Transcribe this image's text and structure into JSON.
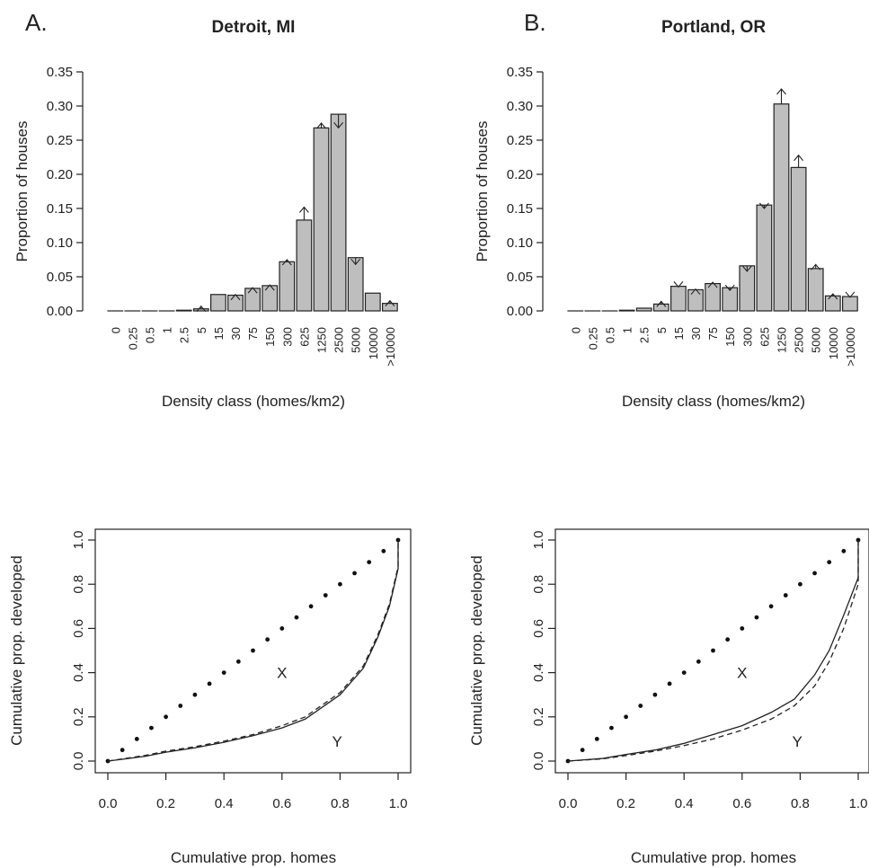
{
  "panels": [
    {
      "letter": "A.",
      "title": "Detroit, MI"
    },
    {
      "letter": "B.",
      "title": "Portland, OR"
    }
  ],
  "chart_data": [
    {
      "type": "bar",
      "panel": "A.",
      "title": "Detroit, MI",
      "xlabel": "Density class (homes/km2)",
      "ylabel": "Proportion of houses",
      "ylim": [
        0,
        0.35
      ],
      "yticks": [
        "0.00",
        "0.05",
        "0.10",
        "0.15",
        "0.20",
        "0.25",
        "0.30",
        "0.35"
      ],
      "categories": [
        "0",
        "0.25",
        "0.5",
        "1",
        "2.5",
        "5",
        "15",
        "30",
        "75",
        "150",
        "300",
        "625",
        "1250",
        "2500",
        "5000",
        "10000",
        ">10000"
      ],
      "values": [
        0.0,
        0.0,
        0.0,
        0.0,
        0.001,
        0.003,
        0.024,
        0.023,
        0.033,
        0.037,
        0.072,
        0.133,
        0.268,
        0.288,
        0.078,
        0.026,
        0.011
      ],
      "arrow_ends": [
        0.0,
        0.0,
        0.0,
        0.0,
        0.001,
        0.007,
        0.024,
        0.024,
        0.034,
        0.038,
        0.075,
        0.152,
        0.275,
        0.268,
        0.068,
        0.026,
        0.015
      ],
      "grid": false
    },
    {
      "type": "bar",
      "panel": "B.",
      "title": "Portland, OR",
      "xlabel": "Density class (homes/km2)",
      "ylabel": "Proportion of houses",
      "ylim": [
        0,
        0.35
      ],
      "yticks": [
        "0.00",
        "0.05",
        "0.10",
        "0.15",
        "0.20",
        "0.25",
        "0.30",
        "0.35"
      ],
      "categories": [
        "0",
        "0.25",
        "0.5",
        "1",
        "2.5",
        "5",
        "15",
        "30",
        "75",
        "150",
        "300",
        "625",
        "1250",
        "2500",
        "5000",
        "10000",
        ">10000"
      ],
      "values": [
        0.0,
        0.0,
        0.0,
        0.001,
        0.004,
        0.01,
        0.036,
        0.031,
        0.04,
        0.034,
        0.066,
        0.155,
        0.303,
        0.21,
        0.062,
        0.022,
        0.021
      ],
      "arrow_ends": [
        0.0,
        0.0,
        0.0,
        0.001,
        0.004,
        0.014,
        0.035,
        0.032,
        0.042,
        0.03,
        0.058,
        0.15,
        0.325,
        0.228,
        0.068,
        0.025,
        0.02
      ],
      "grid": false
    },
    {
      "type": "line",
      "panel": "A.",
      "xlabel": "Cumulative prop. homes",
      "ylabel": "Cumulative prop. developed",
      "xlim": [
        0,
        1
      ],
      "ylim": [
        0,
        1
      ],
      "xticks": [
        "0.0",
        "0.2",
        "0.4",
        "0.6",
        "0.8",
        "1.0"
      ],
      "yticks": [
        "0.0",
        "0.2",
        "0.4",
        "0.6",
        "0.8",
        "1.0"
      ],
      "annotations": [
        {
          "text": "X",
          "x": 0.6,
          "y": 0.4
        },
        {
          "text": "Y",
          "x": 0.79,
          "y": 0.09
        }
      ],
      "series": [
        {
          "style": "dotted",
          "x": [
            0,
            0.05,
            0.1,
            0.15,
            0.2,
            0.25,
            0.3,
            0.35,
            0.4,
            0.45,
            0.5,
            0.55,
            0.6,
            0.65,
            0.7,
            0.75,
            0.8,
            0.85,
            0.9,
            0.95,
            1.0
          ],
          "y": [
            0,
            0.05,
            0.1,
            0.15,
            0.2,
            0.25,
            0.3,
            0.35,
            0.4,
            0.45,
            0.5,
            0.55,
            0.6,
            0.65,
            0.7,
            0.75,
            0.8,
            0.85,
            0.9,
            0.95,
            1.0
          ]
        },
        {
          "style": "solid",
          "x": [
            0,
            0.05,
            0.13,
            0.2,
            0.3,
            0.4,
            0.5,
            0.6,
            0.68,
            0.8,
            0.88,
            0.93,
            0.97,
            1.0,
            1.0
          ],
          "y": [
            0,
            0.008,
            0.022,
            0.04,
            0.06,
            0.085,
            0.115,
            0.15,
            0.19,
            0.3,
            0.42,
            0.56,
            0.7,
            0.87,
            1.0
          ]
        },
        {
          "style": "dashed",
          "x": [
            0,
            0.05,
            0.13,
            0.2,
            0.3,
            0.4,
            0.5,
            0.6,
            0.68,
            0.8,
            0.88,
            0.93,
            0.97,
            1.0,
            1.0
          ],
          "y": [
            0,
            0.01,
            0.026,
            0.045,
            0.065,
            0.09,
            0.12,
            0.16,
            0.2,
            0.31,
            0.43,
            0.57,
            0.71,
            0.88,
            1.0
          ]
        }
      ]
    },
    {
      "type": "line",
      "panel": "B.",
      "xlabel": "Cumulative prop. homes",
      "ylabel": "Cumulative prop. developed",
      "xlim": [
        0,
        1
      ],
      "ylim": [
        0,
        1
      ],
      "xticks": [
        "0.0",
        "0.2",
        "0.4",
        "0.6",
        "0.8",
        "1.0"
      ],
      "yticks": [
        "0.0",
        "0.2",
        "0.4",
        "0.6",
        "0.8",
        "1.0"
      ],
      "annotations": [
        {
          "text": "X",
          "x": 0.6,
          "y": 0.4
        },
        {
          "text": "Y",
          "x": 0.79,
          "y": 0.09
        }
      ],
      "series": [
        {
          "style": "dotted",
          "x": [
            0,
            0.05,
            0.1,
            0.15,
            0.2,
            0.25,
            0.3,
            0.35,
            0.4,
            0.45,
            0.5,
            0.55,
            0.6,
            0.65,
            0.7,
            0.75,
            0.8,
            0.85,
            0.9,
            0.95,
            1.0
          ],
          "y": [
            0,
            0.05,
            0.1,
            0.15,
            0.2,
            0.25,
            0.3,
            0.35,
            0.4,
            0.45,
            0.5,
            0.55,
            0.6,
            0.65,
            0.7,
            0.75,
            0.8,
            0.85,
            0.9,
            0.95,
            1.0
          ]
        },
        {
          "style": "solid",
          "x": [
            0,
            0.12,
            0.2,
            0.3,
            0.4,
            0.5,
            0.6,
            0.7,
            0.78,
            0.85,
            0.9,
            0.95,
            1.0,
            1.0
          ],
          "y": [
            0,
            0.012,
            0.03,
            0.05,
            0.08,
            0.12,
            0.16,
            0.22,
            0.28,
            0.39,
            0.5,
            0.66,
            0.83,
            1.0
          ]
        },
        {
          "style": "dashed",
          "x": [
            0,
            0.12,
            0.2,
            0.3,
            0.4,
            0.5,
            0.6,
            0.7,
            0.78,
            0.85,
            0.9,
            0.95,
            1.0,
            1.0
          ],
          "y": [
            0,
            0.01,
            0.025,
            0.045,
            0.07,
            0.1,
            0.14,
            0.19,
            0.25,
            0.34,
            0.45,
            0.6,
            0.8,
            1.0
          ]
        }
      ]
    }
  ]
}
